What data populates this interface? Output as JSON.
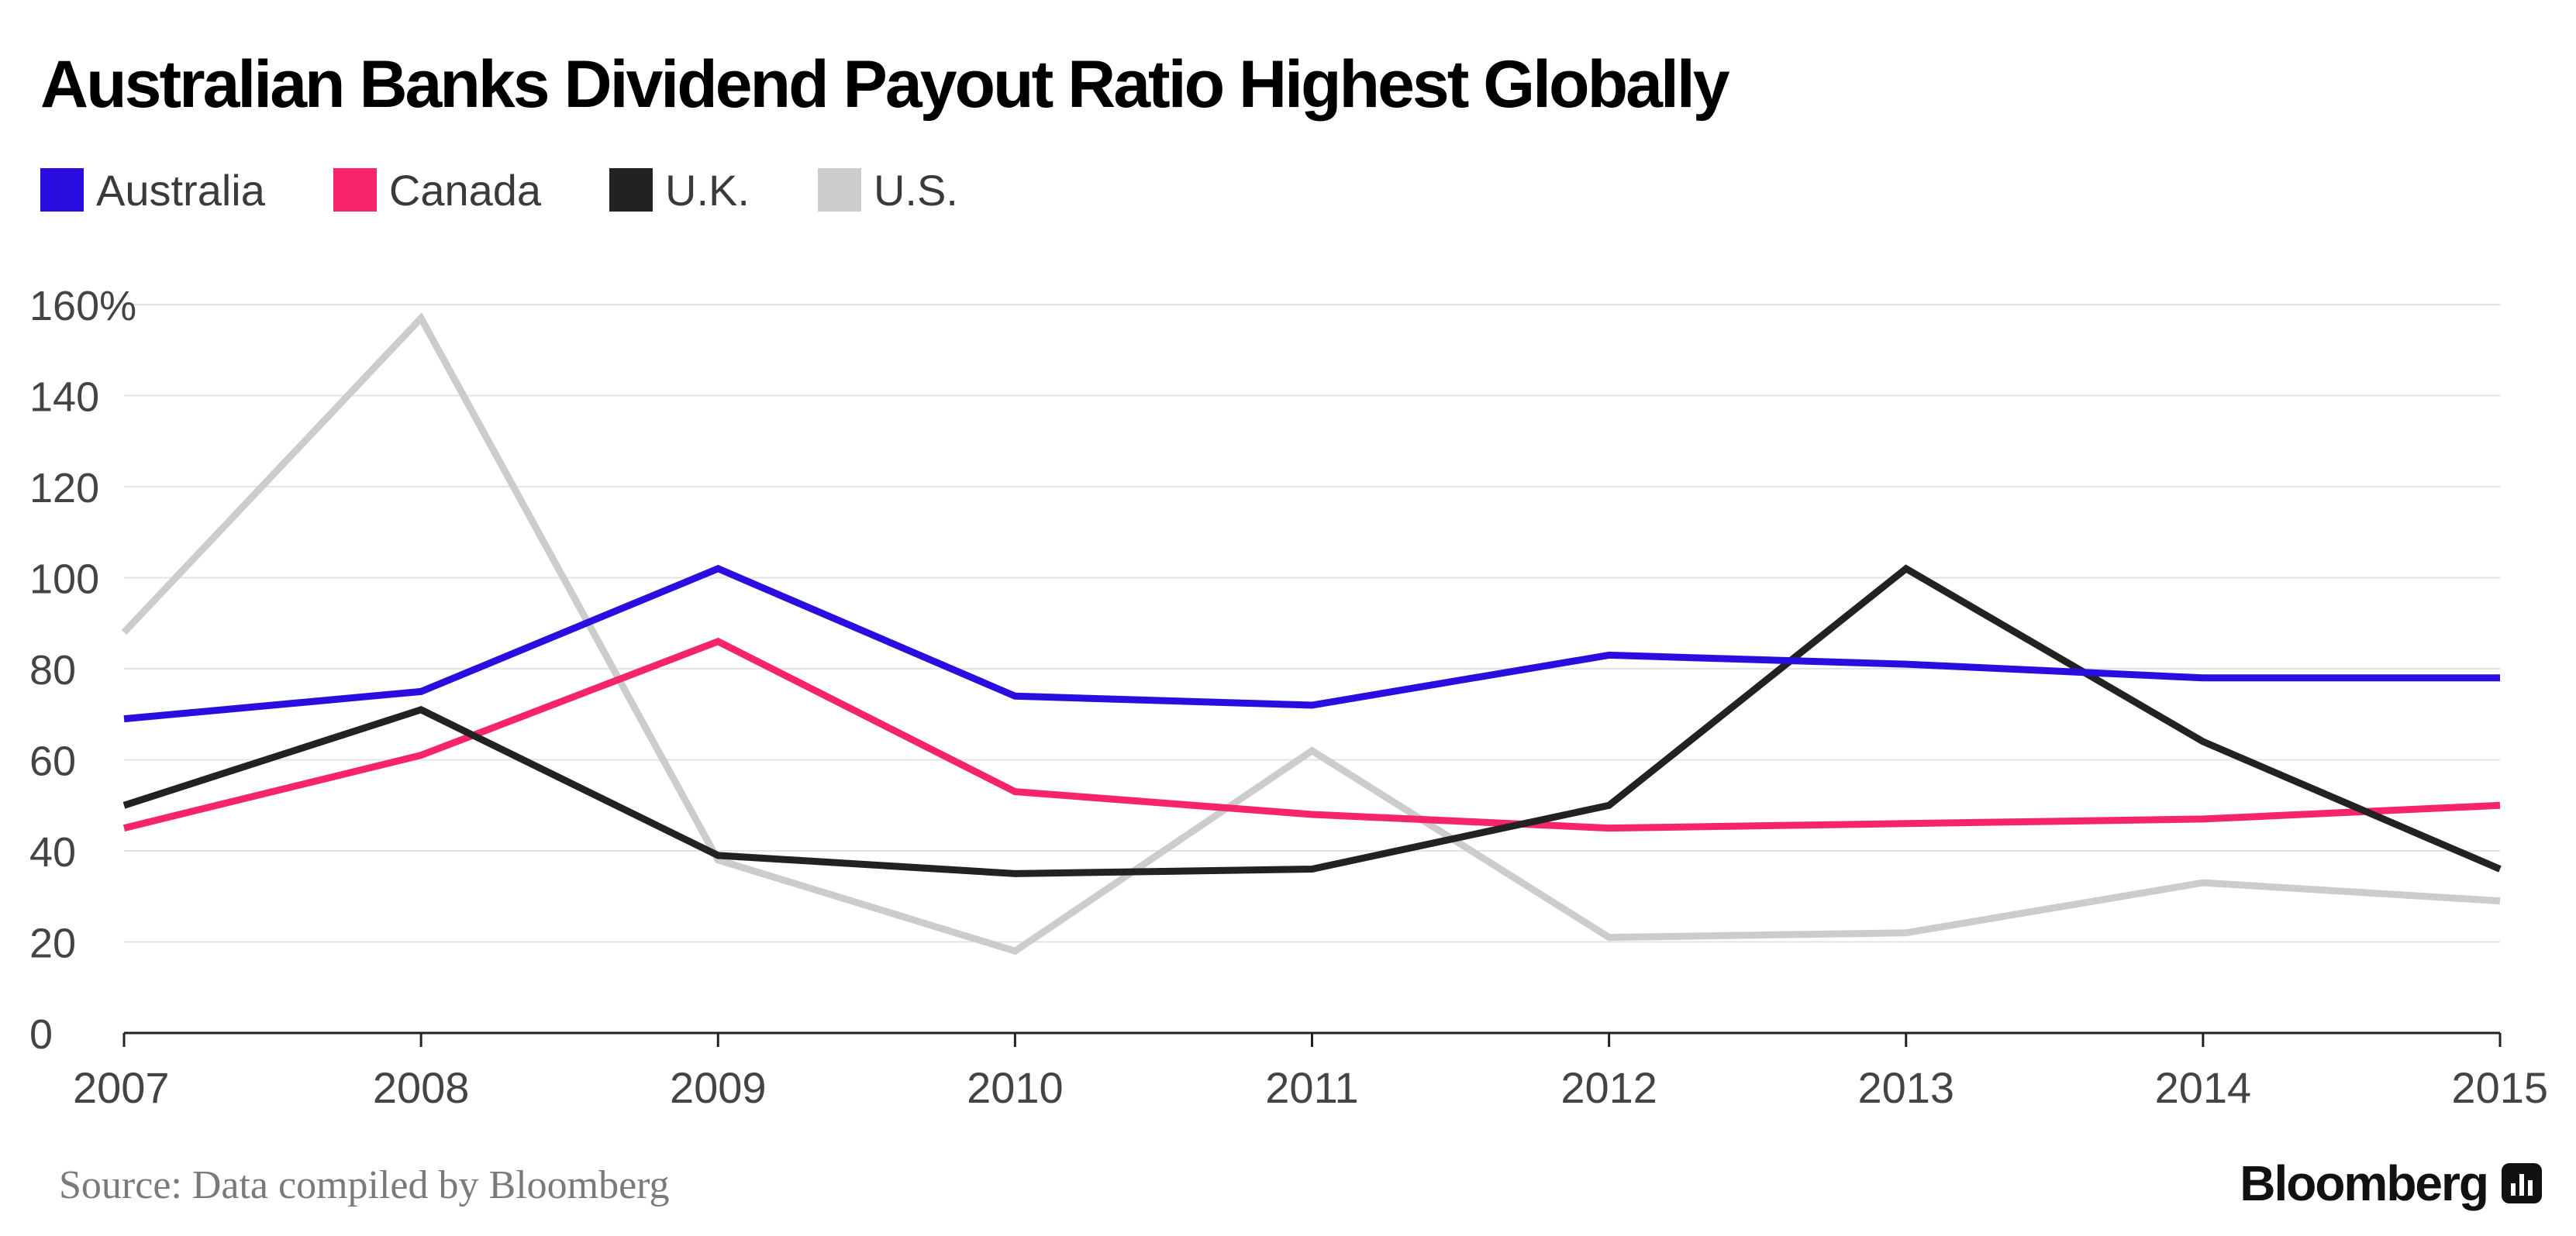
{
  "title": "Australian Banks Dividend Payout Ratio Highest Globally",
  "source": "Source: Data compiled by Bloomberg",
  "brand": "Bloomberg",
  "brand_icon": "bloomberg-terminal-icon",
  "chart_data": {
    "type": "line",
    "title": "Australian Banks Dividend Payout Ratio Highest Globally",
    "xlabel": "",
    "ylabel": "",
    "categories": [
      "2007",
      "2008",
      "2009",
      "2010",
      "2011",
      "2012",
      "2013",
      "2014",
      "2015"
    ],
    "ylim": [
      0,
      160
    ],
    "yticks": [
      0,
      20,
      40,
      60,
      80,
      100,
      120,
      140,
      160
    ],
    "ytick_labels": [
      "0",
      "20",
      "40",
      "60",
      "80",
      "100",
      "120",
      "140",
      "160%"
    ],
    "grid": true,
    "legend_position": "top-left",
    "series": [
      {
        "name": "Australia",
        "color": "#2a0ee0",
        "values": [
          69,
          75,
          102,
          74,
          72,
          83,
          81,
          78,
          78
        ]
      },
      {
        "name": "Canada",
        "color": "#f6246b",
        "values": [
          45,
          61,
          86,
          53,
          48,
          45,
          46,
          47,
          50
        ]
      },
      {
        "name": "U.K.",
        "color": "#222222",
        "values": [
          50,
          71,
          39,
          35,
          36,
          50,
          102,
          64,
          36
        ]
      },
      {
        "name": "U.S.",
        "color": "#cccccc",
        "values": [
          88,
          157,
          38,
          18,
          62,
          21,
          22,
          33,
          29
        ]
      }
    ]
  }
}
